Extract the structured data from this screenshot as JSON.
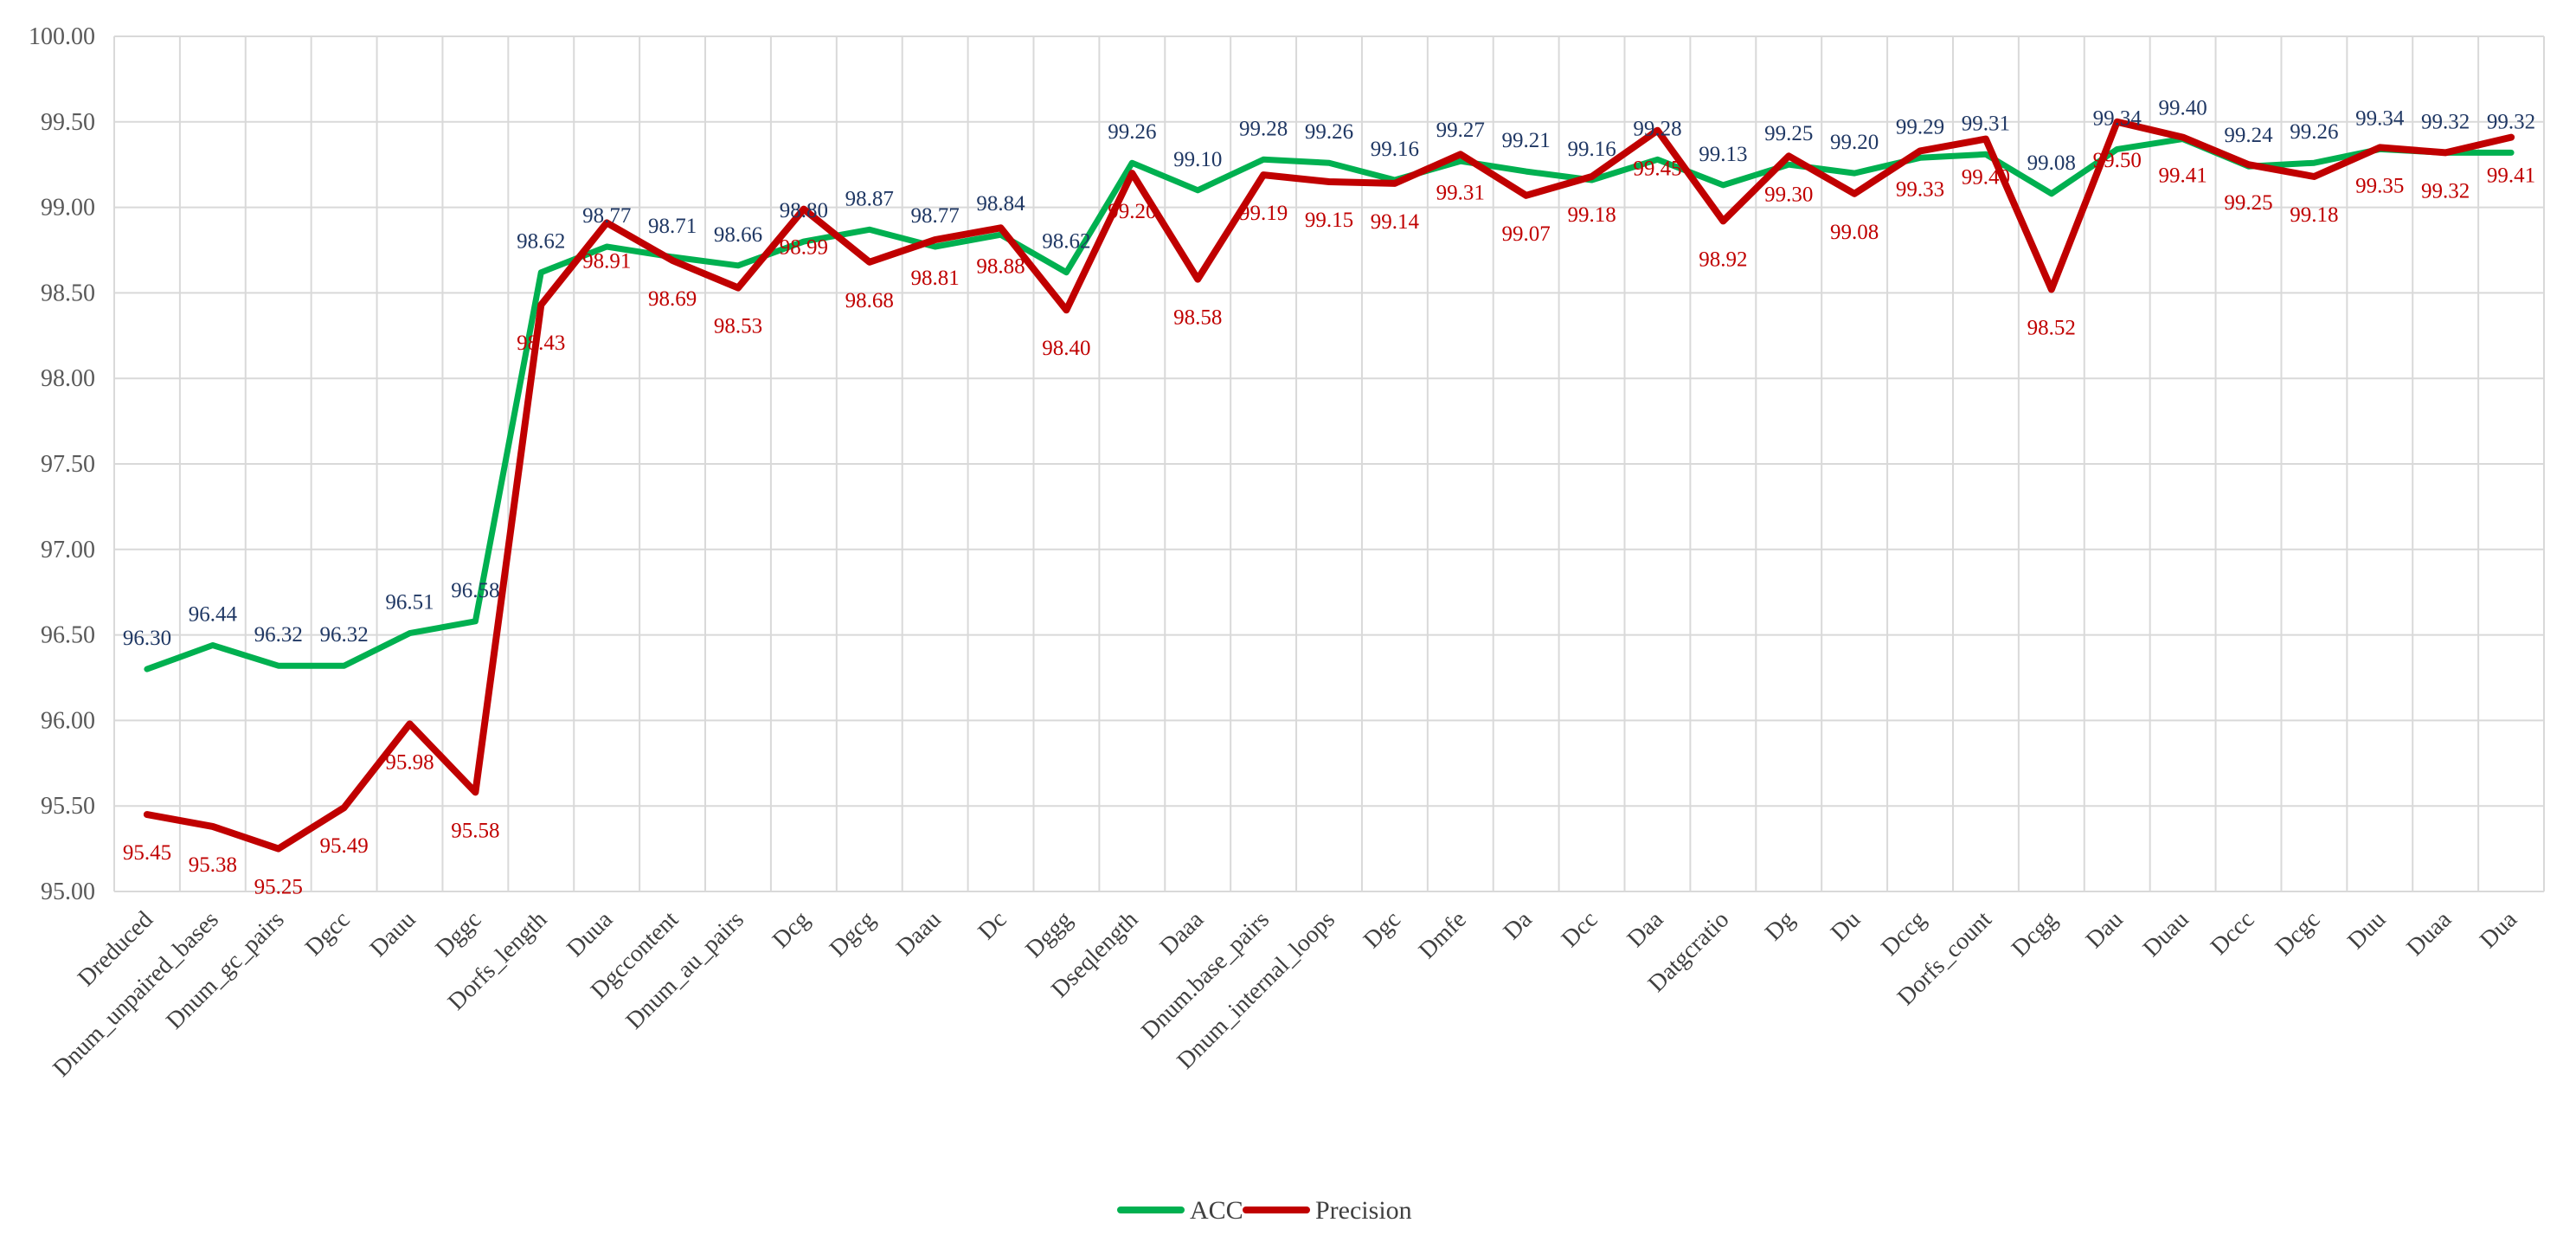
{
  "chart_data": {
    "type": "line",
    "title": "",
    "xlabel": "",
    "ylabel": "",
    "ylim": [
      95.0,
      100.0
    ],
    "yticks": [
      "95.00",
      "95.50",
      "96.00",
      "96.50",
      "97.00",
      "97.50",
      "98.00",
      "98.50",
      "99.00",
      "99.50",
      "100.00"
    ],
    "grid": true,
    "legend_position": "bottom-center",
    "categories": [
      "Dreduced",
      "Dnum_unpaired_bases",
      "Dnum_gc_pairs",
      "Dgcc",
      "Dauu",
      "Dggc",
      "Dorfs_length",
      "Duua",
      "Dgccontent",
      "Dnum_au_pairs",
      "Dcg",
      "Dgcg",
      "Daau",
      "Dc",
      "Dggg",
      "Dseqlength",
      "Daaa",
      "Dnum.base_pairs",
      "Dnum_internal_loops",
      "Dgc",
      "Dmfe",
      "Da",
      "Dcc",
      "Daa",
      "Datgcratio",
      "Dg",
      "Du",
      "Dccg",
      "Dorfs_count",
      "Dcgg",
      "Dau",
      "Duau",
      "Dccc",
      "Dcgc",
      "Duu",
      "Duaa",
      "Dua"
    ],
    "series": [
      {
        "name": "ACC",
        "color": "#00b050",
        "label_color": "#203864",
        "values": [
          96.3,
          96.44,
          96.32,
          96.32,
          96.51,
          96.58,
          98.62,
          98.77,
          98.71,
          98.66,
          98.8,
          98.87,
          98.77,
          98.84,
          98.62,
          99.26,
          99.1,
          99.28,
          99.26,
          99.16,
          99.27,
          99.21,
          99.16,
          99.28,
          99.13,
          99.25,
          99.2,
          99.29,
          99.31,
          99.08,
          99.34,
          99.4,
          99.24,
          99.26,
          99.34,
          99.32,
          99.32
        ],
        "labels": [
          "96.30",
          "96.44",
          "96.32",
          "96.32",
          "96.51",
          "96.58",
          "98.62",
          "98.77",
          "98.71",
          "98.66",
          "98.80",
          "98.87",
          "98.77",
          "98.84",
          "98.62",
          "99.26",
          "99.10",
          "99.28",
          "99.26",
          "99.16",
          "99.27",
          "99.21",
          "99.16",
          "99.28",
          "99.13",
          "99.25",
          "99.20",
          "99.29",
          "99.31",
          "99.08",
          "99.34",
          "99.40",
          "99.24",
          "99.26",
          "99.34",
          "99.32",
          "99.32"
        ]
      },
      {
        "name": "Precision",
        "color": "#c00000",
        "label_color": "#c00000",
        "values": [
          95.45,
          95.38,
          95.25,
          95.49,
          95.98,
          95.58,
          98.43,
          98.91,
          98.69,
          98.53,
          98.99,
          98.68,
          98.81,
          98.88,
          98.4,
          99.2,
          98.58,
          99.19,
          99.15,
          99.14,
          99.31,
          99.07,
          99.18,
          99.45,
          98.92,
          99.3,
          99.08,
          99.33,
          99.4,
          98.52,
          99.5,
          99.41,
          99.25,
          99.18,
          99.35,
          99.32,
          99.41
        ],
        "labels": [
          "95.45",
          "95.38",
          "95.25",
          "95.49",
          "95.98",
          "95.58",
          "98.43",
          "98.91",
          "98.69",
          "98.53",
          "98.99",
          "98.68",
          "98.81",
          "98.88",
          "98.40",
          "99.20",
          "98.58",
          "99.19",
          "99.15",
          "99.14",
          "99.31",
          "99.07",
          "99.18",
          "99.45",
          "98.92",
          "99.30",
          "99.08",
          "99.33",
          "99.40",
          "98.52",
          "99.50",
          "99.41",
          "99.25",
          "99.18",
          "99.35",
          "99.32",
          "99.41"
        ]
      }
    ]
  }
}
